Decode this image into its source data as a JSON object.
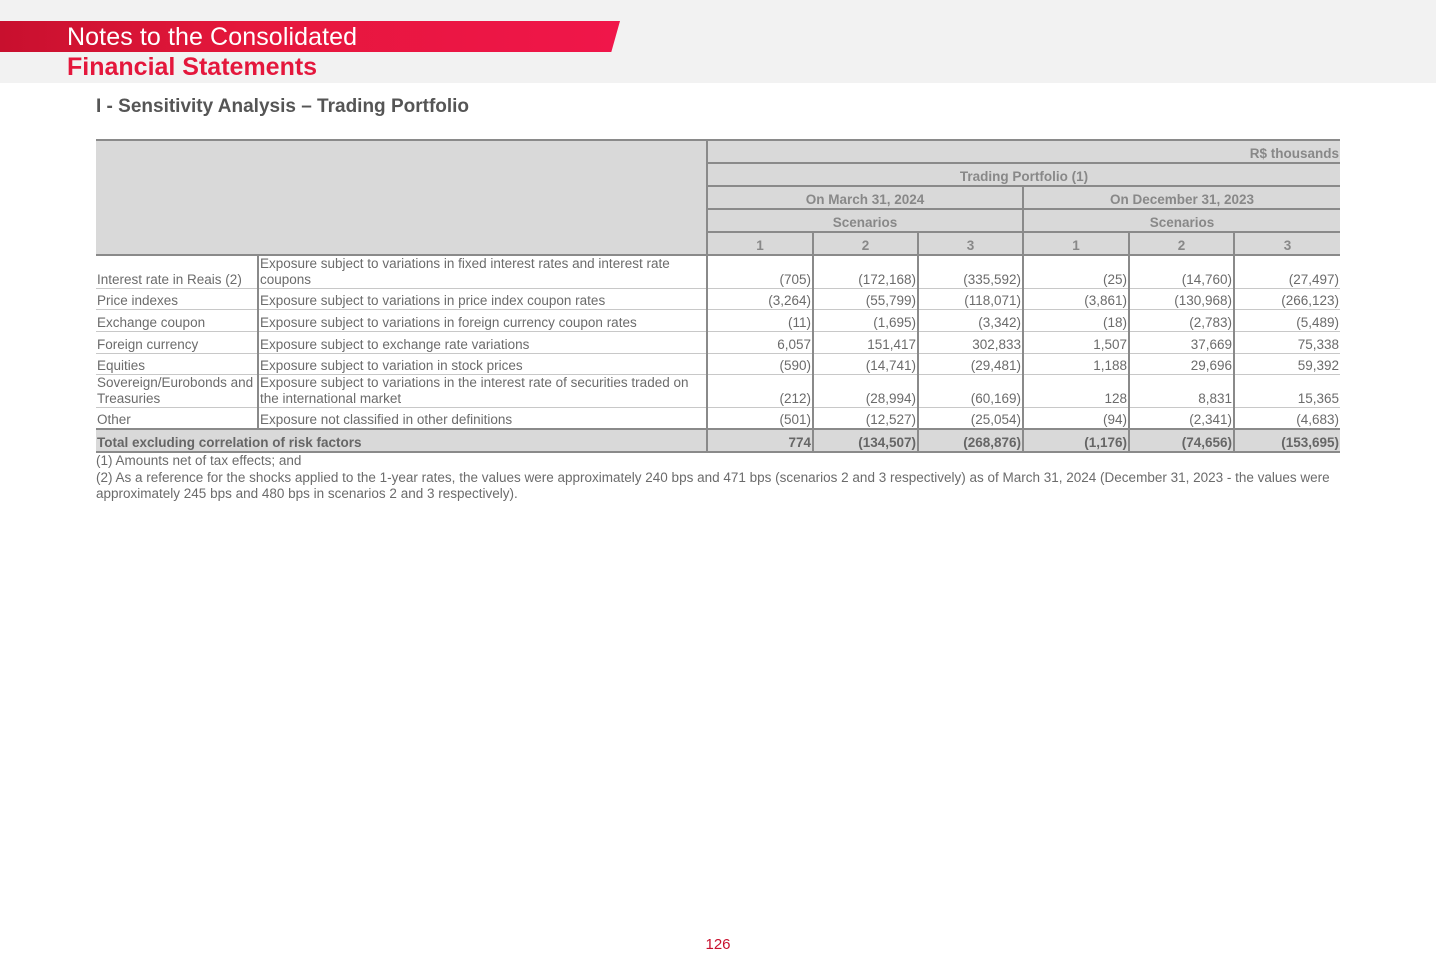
{
  "header": {
    "title_line1": "Notes to the Consolidated",
    "title_line2": "Financial Statements"
  },
  "section_title": "I - Sensitivity Analysis – Trading Portfolio",
  "table": {
    "unit": "R$ thousands",
    "group_title": "Trading Portfolio (1)",
    "periods": [
      "On March 31, 2024",
      "On December 31, 2023"
    ],
    "scenarios_label": "Scenarios",
    "scenario_numbers": [
      "1",
      "2",
      "3",
      "1",
      "2",
      "3"
    ],
    "rows": [
      {
        "factor": "Interest rate in Reais (2)",
        "definition": "Exposure subject to variations in fixed interest rates and interest rate coupons",
        "values": [
          "(705)",
          "(172,168)",
          "(335,592)",
          "(25)",
          "(14,760)",
          "(27,497)"
        ]
      },
      {
        "factor": "Price indexes",
        "definition": "Exposure subject to variations in price index coupon rates",
        "values": [
          "(3,264)",
          "(55,799)",
          "(118,071)",
          "(3,861)",
          "(130,968)",
          "(266,123)"
        ]
      },
      {
        "factor": "Exchange coupon",
        "definition": "Exposure subject to variations in foreign currency coupon rates",
        "values": [
          "(11)",
          "(1,695)",
          "(3,342)",
          "(18)",
          "(2,783)",
          "(5,489)"
        ]
      },
      {
        "factor": "Foreign currency",
        "definition": "Exposure subject to exchange rate variations",
        "values": [
          "6,057",
          "151,417",
          "302,833",
          "1,507",
          "37,669",
          "75,338"
        ]
      },
      {
        "factor": "Equities",
        "definition": "Exposure subject to variation in stock prices",
        "values": [
          "(590)",
          "(14,741)",
          "(29,481)",
          "1,188",
          "29,696",
          "59,392"
        ]
      },
      {
        "factor": "Sovereign/Eurobonds and Treasuries",
        "definition": "Exposure subject to variations in the interest rate of securities traded on the international market",
        "values": [
          "(212)",
          "(28,994)",
          "(60,169)",
          "128",
          "8,831",
          "15,365"
        ]
      },
      {
        "factor": "Other",
        "definition": "Exposure not classified in other definitions",
        "values": [
          "(501)",
          "(12,527)",
          "(25,054)",
          "(94)",
          "(2,341)",
          "(4,683)"
        ]
      }
    ],
    "total": {
      "label": "Total excluding correlation of risk factors",
      "values": [
        "774",
        "(134,507)",
        "(268,876)",
        "(1,176)",
        "(74,656)",
        "(153,695)"
      ]
    }
  },
  "notes": [
    "(1) Amounts net of tax effects; and",
    "(2) As a reference for the shocks applied to the 1-year rates, the values were approximately 240 bps and 471 bps (scenarios 2 and 3 respectively) as of March 31, 2024 (December 31, 2023 - the values were approximately 245 bps and 480 bps in scenarios 2 and 3 respectively)."
  ],
  "page_number": "126"
}
